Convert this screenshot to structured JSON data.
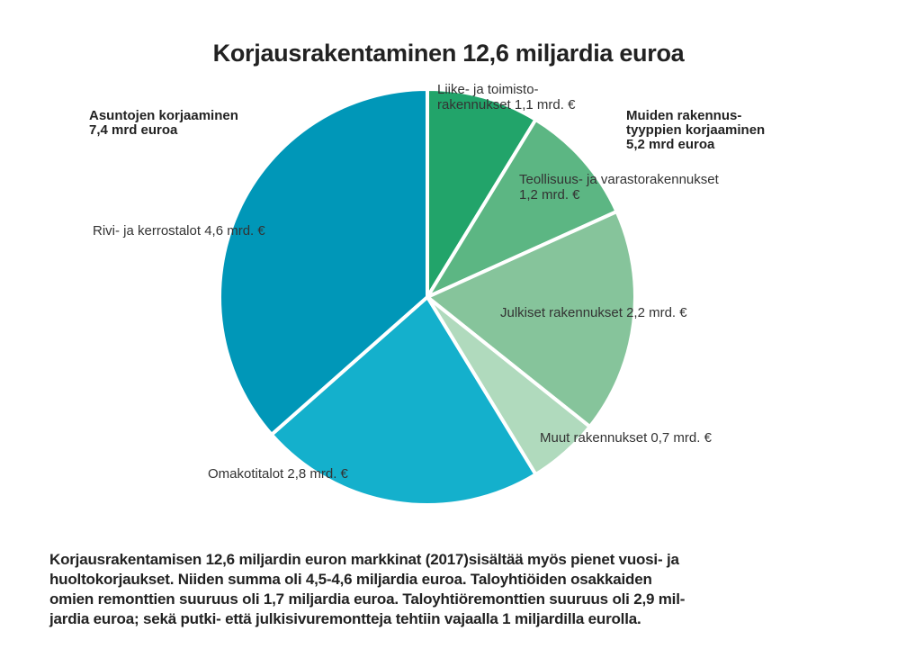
{
  "chart_data": {
    "type": "pie",
    "title": "Korjausrakentaminen 12,6 miljardia euroa",
    "groups": [
      {
        "line1": "Asuntojen korjaaminen",
        "line2": "7,4 mrd euroa"
      },
      {
        "line1": "Muiden rakennus-",
        "line2": "tyyppien korjaaminen",
        "line3": "5,2 mrd euroa"
      }
    ],
    "slices": [
      {
        "label1": "Liike- ja toimisto-",
        "label2": "rakennukset 1,1 mrd. €",
        "value": 1.1,
        "color": "#22a46a"
      },
      {
        "label1": "Teollisuus- ja varastorakennukset",
        "label2": "1,2 mrd. €",
        "value": 1.2,
        "color": "#5cb683"
      },
      {
        "label1": "Julkiset rakennukset 2,2 mrd. €",
        "value": 2.2,
        "color": "#86c49b"
      },
      {
        "label1": "Muut rakennukset 0,7 mrd. €",
        "value": 0.7,
        "color": "#b0dabd"
      },
      {
        "label1": "Omakotitalot 2,8 mrd. €",
        "value": 2.8,
        "color": "#14b0cc"
      },
      {
        "label1": "Rivi- ja kerrostalot 4,6 mrd. €",
        "value": 4.6,
        "color": "#0097b8"
      }
    ]
  },
  "caption": {
    "line1": "Korjausrakentamisen 12,6 miljardin euron markkinat (2017)sisältää myös pienet vuosi- ja",
    "line2": "huoltokorjaukset. Niiden summa oli 4,5-4,6 miljardia euroa. Taloyhtiöiden osakkaiden",
    "line3": "omien remonttien suuruus oli 1,7 miljardia euroa. Taloyhtiöremonttien suuruus oli 2,9 mil-",
    "line4": "jardia euroa; sekä putki- että julkisivuremontteja tehtiin vajaalla 1 miljardilla eurolla."
  }
}
